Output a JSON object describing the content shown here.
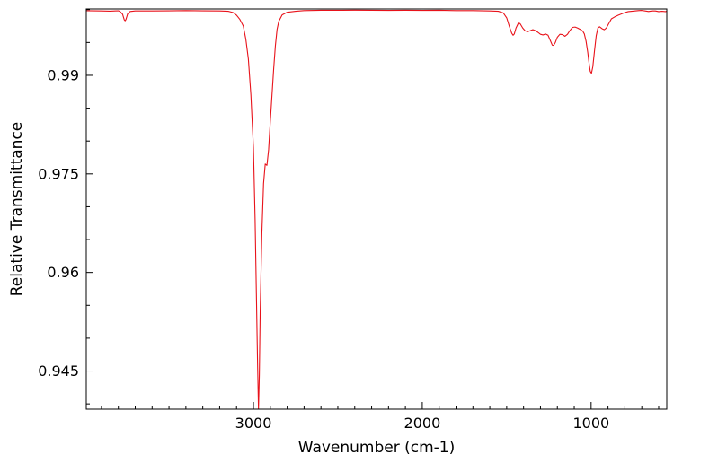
{
  "chart_data": {
    "type": "line",
    "title": "",
    "xlabel": "Wavenumber (cm-1)",
    "ylabel": "Relative Transmittance",
    "x_reversed": true,
    "xlim": [
      3990,
      552
    ],
    "ylim": [
      0.9392,
      1.0001
    ],
    "x_ticks": [
      3000,
      2000,
      1000
    ],
    "x_tick_labels": [
      "3000",
      "2000",
      "1000"
    ],
    "y_ticks": [
      0.945,
      0.96,
      0.975,
      0.99
    ],
    "y_tick_labels": [
      "0.945",
      "0.96",
      "0.975",
      "0.99"
    ],
    "grid": false,
    "legend": "none",
    "series": [
      {
        "color": "#e8121a",
        "points": [
          [
            3990,
            0.99983
          ],
          [
            3900,
            0.9998
          ],
          [
            3850,
            0.99977
          ],
          [
            3800,
            0.99982
          ],
          [
            3790,
            0.9997
          ],
          [
            3775,
            0.9993
          ],
          [
            3765,
            0.99845
          ],
          [
            3760,
            0.9983
          ],
          [
            3755,
            0.9985
          ],
          [
            3745,
            0.99935
          ],
          [
            3730,
            0.99972
          ],
          [
            3700,
            0.9998
          ],
          [
            3600,
            0.9998
          ],
          [
            3500,
            0.99982
          ],
          [
            3400,
            0.99985
          ],
          [
            3300,
            0.99982
          ],
          [
            3200,
            0.9998
          ],
          [
            3150,
            0.99975
          ],
          [
            3120,
            0.99955
          ],
          [
            3100,
            0.99915
          ],
          [
            3080,
            0.9985
          ],
          [
            3060,
            0.9975
          ],
          [
            3045,
            0.9955
          ],
          [
            3030,
            0.9925
          ],
          [
            3015,
            0.987
          ],
          [
            3000,
            0.979
          ],
          [
            2990,
            0.968
          ],
          [
            2982,
            0.956
          ],
          [
            2975,
            0.9455
          ],
          [
            2970,
            0.9392
          ],
          [
            2965,
            0.9445
          ],
          [
            2960,
            0.954
          ],
          [
            2950,
            0.966
          ],
          [
            2940,
            0.9735
          ],
          [
            2930,
            0.9765
          ],
          [
            2920,
            0.9763
          ],
          [
            2910,
            0.9787
          ],
          [
            2900,
            0.983
          ],
          [
            2890,
            0.987
          ],
          [
            2880,
            0.991
          ],
          [
            2870,
            0.9945
          ],
          [
            2860,
            0.997
          ],
          [
            2850,
            0.9982
          ],
          [
            2830,
            0.9992
          ],
          [
            2800,
            0.9996
          ],
          [
            2750,
            0.99975
          ],
          [
            2700,
            0.99985
          ],
          [
            2600,
            0.9999
          ],
          [
            2500,
            0.9999
          ],
          [
            2400,
            0.99992
          ],
          [
            2300,
            0.9999
          ],
          [
            2200,
            0.99988
          ],
          [
            2100,
            0.9999
          ],
          [
            2000,
            0.99988
          ],
          [
            1900,
            0.9999
          ],
          [
            1800,
            0.99985
          ],
          [
            1700,
            0.99985
          ],
          [
            1600,
            0.9998
          ],
          [
            1550,
            0.99975
          ],
          [
            1520,
            0.9995
          ],
          [
            1500,
            0.99875
          ],
          [
            1485,
            0.9975
          ],
          [
            1470,
            0.9964
          ],
          [
            1462,
            0.9961
          ],
          [
            1455,
            0.9963
          ],
          [
            1445,
            0.9972
          ],
          [
            1430,
            0.998
          ],
          [
            1420,
            0.99785
          ],
          [
            1405,
            0.9972
          ],
          [
            1390,
            0.99675
          ],
          [
            1375,
            0.99665
          ],
          [
            1360,
            0.9968
          ],
          [
            1345,
            0.99695
          ],
          [
            1330,
            0.9968
          ],
          [
            1315,
            0.99655
          ],
          [
            1300,
            0.99625
          ],
          [
            1285,
            0.99615
          ],
          [
            1270,
            0.9963
          ],
          [
            1255,
            0.9961
          ],
          [
            1240,
            0.9952
          ],
          [
            1230,
            0.9946
          ],
          [
            1222,
            0.99455
          ],
          [
            1212,
            0.995
          ],
          [
            1200,
            0.9958
          ],
          [
            1185,
            0.99625
          ],
          [
            1170,
            0.9962
          ],
          [
            1155,
            0.99595
          ],
          [
            1140,
            0.99625
          ],
          [
            1125,
            0.99685
          ],
          [
            1110,
            0.9973
          ],
          [
            1095,
            0.99735
          ],
          [
            1080,
            0.9972
          ],
          [
            1065,
            0.997
          ],
          [
            1050,
            0.99675
          ],
          [
            1040,
            0.9963
          ],
          [
            1030,
            0.9952
          ],
          [
            1020,
            0.9935
          ],
          [
            1012,
            0.9918
          ],
          [
            1005,
            0.9906
          ],
          [
            998,
            0.9903
          ],
          [
            990,
            0.9913
          ],
          [
            980,
            0.9937
          ],
          [
            970,
            0.996
          ],
          [
            960,
            0.9972
          ],
          [
            950,
            0.9974
          ],
          [
            935,
            0.9971
          ],
          [
            922,
            0.99695
          ],
          [
            910,
            0.9972
          ],
          [
            895,
            0.9979
          ],
          [
            880,
            0.9986
          ],
          [
            860,
            0.9989
          ],
          [
            840,
            0.99915
          ],
          [
            820,
            0.99935
          ],
          [
            800,
            0.99955
          ],
          [
            780,
            0.9997
          ],
          [
            760,
            0.99975
          ],
          [
            740,
            0.9998
          ],
          [
            720,
            0.99985
          ],
          [
            700,
            0.99988
          ],
          [
            680,
            0.9998
          ],
          [
            660,
            0.99972
          ],
          [
            640,
            0.9998
          ],
          [
            620,
            0.9998
          ],
          [
            600,
            0.9997
          ],
          [
            580,
            0.99975
          ],
          [
            560,
            0.9997
          ],
          [
            552,
            0.99975
          ]
        ]
      }
    ]
  }
}
